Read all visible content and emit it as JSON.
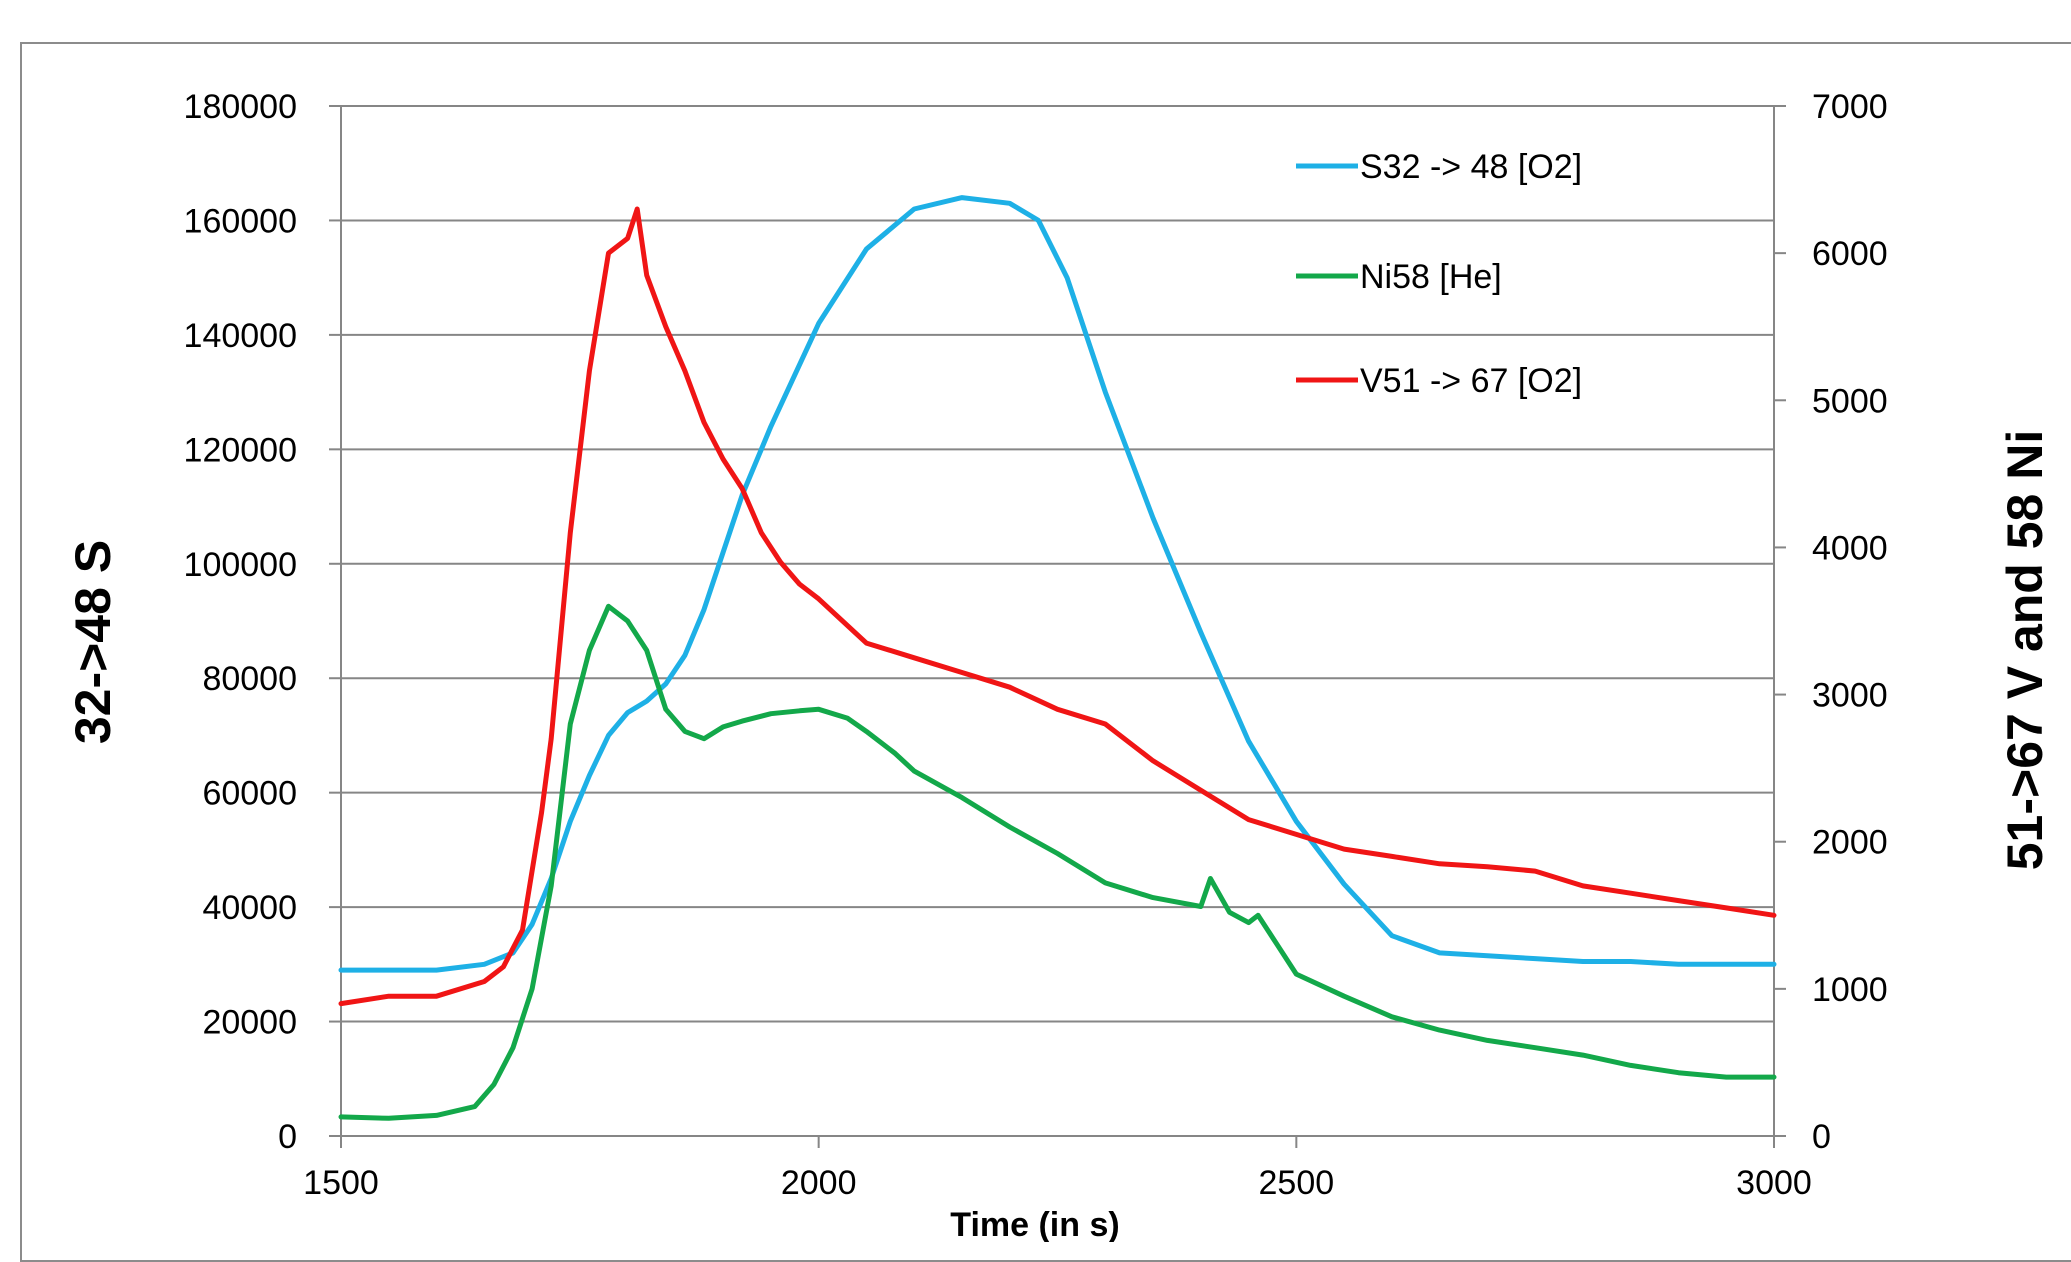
{
  "chart_data": {
    "type": "line",
    "xlabel": "Time (in s)",
    "ylabel_left": "32->48 S",
    "ylabel_right": "51->67 V and 58 Ni",
    "xlim": [
      1500,
      3000
    ],
    "x_ticks": [
      "1500",
      "2000",
      "2500",
      "3000"
    ],
    "ylim_left": [
      0,
      180000
    ],
    "y_ticks_left": [
      "0",
      "20000",
      "40000",
      "60000",
      "80000",
      "100000",
      "120000",
      "140000",
      "160000",
      "180000"
    ],
    "ylim_right": [
      0,
      7000
    ],
    "y_ticks_right": [
      "0",
      "1000",
      "2000",
      "3000",
      "4000",
      "5000",
      "6000",
      "7000"
    ],
    "grid": true,
    "legend_position": "top-right",
    "series": [
      {
        "name": "S32 -> 48 [O2]",
        "axis": "left",
        "color": "#1eb0e6",
        "x": [
          1500,
          1550,
          1600,
          1650,
          1680,
          1700,
          1720,
          1740,
          1760,
          1780,
          1800,
          1820,
          1840,
          1860,
          1880,
          1900,
          1920,
          1950,
          2000,
          2050,
          2100,
          2150,
          2200,
          2230,
          2260,
          2300,
          2350,
          2400,
          2450,
          2500,
          2550,
          2600,
          2650,
          2700,
          2750,
          2800,
          2850,
          2900,
          2950,
          3000
        ],
        "values": [
          29000,
          29000,
          29000,
          30000,
          32000,
          37000,
          45000,
          55000,
          63000,
          70000,
          74000,
          76000,
          79000,
          84000,
          92000,
          102000,
          112000,
          124000,
          142000,
          155000,
          162000,
          164000,
          163000,
          160000,
          150000,
          130000,
          108000,
          88000,
          69000,
          55000,
          44000,
          35000,
          32000,
          31500,
          31000,
          30500,
          30500,
          30000,
          30000,
          30000
        ]
      },
      {
        "name": "Ni58 [He]",
        "axis": "right",
        "color": "#13a84a",
        "x": [
          1500,
          1550,
          1600,
          1640,
          1660,
          1680,
          1700,
          1720,
          1740,
          1760,
          1780,
          1800,
          1820,
          1840,
          1860,
          1880,
          1900,
          1920,
          1950,
          1980,
          2000,
          2030,
          2050,
          2080,
          2100,
          2150,
          2200,
          2250,
          2300,
          2350,
          2400,
          2410,
          2430,
          2450,
          2460,
          2480,
          2500,
          2550,
          2600,
          2650,
          2700,
          2750,
          2800,
          2850,
          2900,
          2950,
          3000
        ],
        "values": [
          130,
          120,
          140,
          200,
          350,
          600,
          1000,
          1700,
          2800,
          3300,
          3600,
          3500,
          3300,
          2900,
          2750,
          2700,
          2780,
          2820,
          2870,
          2890,
          2900,
          2840,
          2750,
          2600,
          2480,
          2300,
          2100,
          1920,
          1720,
          1620,
          1560,
          1750,
          1520,
          1450,
          1500,
          1300,
          1100,
          950,
          810,
          720,
          650,
          600,
          550,
          480,
          430,
          400,
          400
        ]
      },
      {
        "name": "V51 -> 67 [O2]",
        "axis": "right",
        "color": "#f01515",
        "x": [
          1500,
          1550,
          1600,
          1650,
          1670,
          1690,
          1710,
          1720,
          1740,
          1760,
          1780,
          1800,
          1810,
          1820,
          1840,
          1860,
          1880,
          1900,
          1920,
          1940,
          1960,
          1980,
          2000,
          2050,
          2100,
          2150,
          2200,
          2250,
          2300,
          2350,
          2400,
          2450,
          2500,
          2550,
          2600,
          2650,
          2700,
          2750,
          2800,
          2850,
          2900,
          2950,
          3000
        ],
        "values": [
          900,
          950,
          950,
          1050,
          1150,
          1400,
          2200,
          2700,
          4100,
          5200,
          6000,
          6100,
          6300,
          5850,
          5500,
          5200,
          4850,
          4600,
          4400,
          4100,
          3900,
          3750,
          3650,
          3350,
          3250,
          3150,
          3050,
          2900,
          2800,
          2550,
          2350,
          2150,
          2050,
          1950,
          1900,
          1850,
          1830,
          1800,
          1700,
          1650,
          1600,
          1550,
          1500
        ]
      }
    ]
  }
}
